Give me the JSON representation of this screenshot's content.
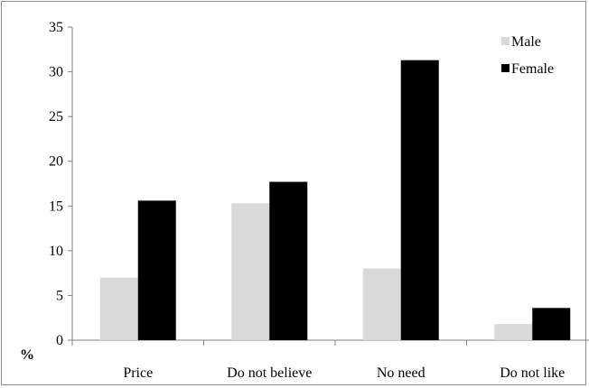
{
  "chart_data": {
    "type": "bar",
    "categories": [
      "Price",
      "Do not believe",
      "No need",
      "Do not like"
    ],
    "series": [
      {
        "name": "Male",
        "values": [
          7.0,
          15.3,
          8.0,
          1.8
        ],
        "color": "#d9d9d9"
      },
      {
        "name": "Female",
        "values": [
          15.6,
          17.7,
          31.3,
          3.6
        ],
        "color": "#000000"
      }
    ],
    "ylabel": "%",
    "ylim": [
      0,
      35
    ],
    "yticks": [
      0,
      5,
      10,
      15,
      20,
      25,
      30,
      35
    ],
    "grid": false,
    "legend_position": "top-right"
  }
}
